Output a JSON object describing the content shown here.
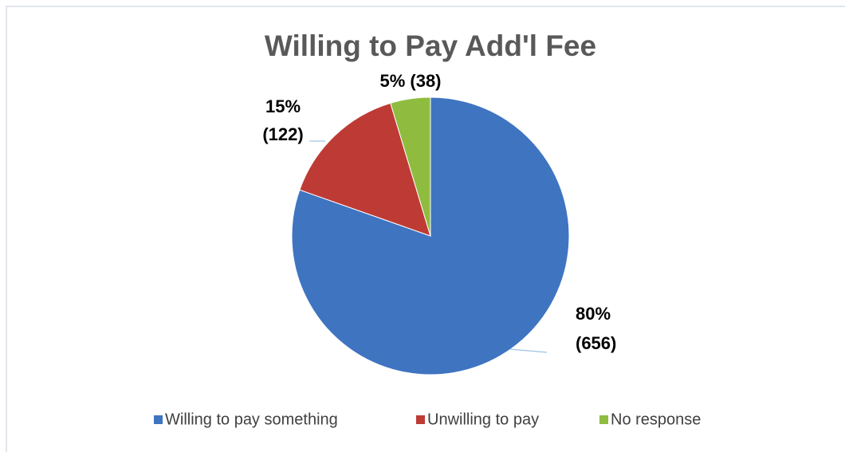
{
  "chart_data": {
    "type": "pie",
    "title": "Willing to Pay Add'l Fee",
    "categories": [
      "Willing to pay something",
      "Unwilling to pay",
      "No response"
    ],
    "values": [
      656,
      122,
      38
    ],
    "value_labels": [
      "80% (656)",
      "15% (122)",
      "5% (38)"
    ],
    "colors": [
      "#3f74c1",
      "#be3b35",
      "#8fbc3f"
    ],
    "legend": "bottom"
  }
}
